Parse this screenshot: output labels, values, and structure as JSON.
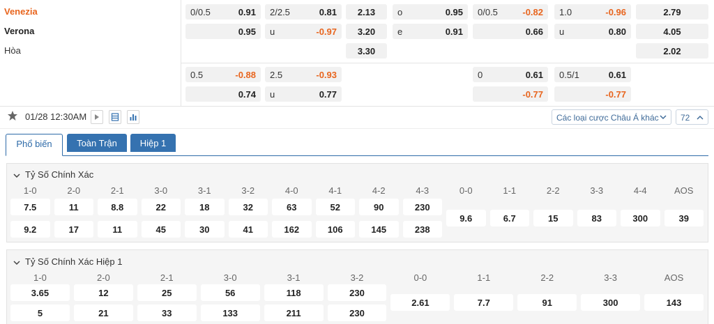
{
  "match": {
    "home": "Venezia",
    "away": "Verona",
    "draw": "Hòa"
  },
  "odds_main": {
    "handicap": {
      "home_line": "0/0.5",
      "home_odds": "0.91",
      "away_odds": "0.95"
    },
    "over_under": {
      "line": "2/2.5",
      "over_odds": "0.81",
      "under_label": "u",
      "under_odds": "-0.97"
    },
    "one_x_two": {
      "home": "2.13",
      "away": "3.20",
      "draw": "3.30"
    },
    "odd_even": {
      "odd_label": "o",
      "odd_odds": "0.95",
      "even_label": "e",
      "even_odds": "0.91"
    },
    "h1_handicap": {
      "line": "0/0.5",
      "home_odds": "-0.82",
      "away_odds": "0.66"
    },
    "h1_over_under": {
      "line": "1.0",
      "over_odds": "-0.96",
      "under_label": "u",
      "under_odds": "0.80"
    },
    "h1_one_x_two": {
      "home": "2.79",
      "away": "4.05",
      "draw": "2.02"
    }
  },
  "odds_alt": {
    "handicap": {
      "home_line": "0.5",
      "home_odds": "-0.88",
      "away_odds": "0.74"
    },
    "over_under": {
      "line": "2.5",
      "over_odds": "-0.93",
      "under_label": "u",
      "under_odds": "0.77"
    },
    "h1_handicap": {
      "line": "0",
      "home_odds": "0.61",
      "away_odds": "-0.77"
    },
    "h1_over_under": {
      "line": "0.5/1",
      "over_odds": "0.61",
      "away_odds": "-0.77"
    }
  },
  "toolbar": {
    "datetime": "01/28 12:30AM",
    "market_select": "Các loại cược Châu Á khác",
    "count": "72"
  },
  "tabs": [
    "Phổ biến",
    "Toàn Trận",
    "Hiệp 1"
  ],
  "correct_score": {
    "title": "Tỷ Số Chính Xác",
    "home_headers": [
      "1-0",
      "2-0",
      "2-1",
      "3-0",
      "3-1",
      "3-2",
      "4-0",
      "4-1",
      "4-2",
      "4-3"
    ],
    "home_row1": [
      "7.5",
      "11",
      "8.8",
      "22",
      "18",
      "32",
      "63",
      "52",
      "90",
      "230"
    ],
    "home_row2": [
      "9.2",
      "17",
      "11",
      "45",
      "30",
      "41",
      "162",
      "106",
      "145",
      "238"
    ],
    "draw_headers": [
      "0-0",
      "1-1",
      "2-2",
      "3-3",
      "4-4",
      "AOS"
    ],
    "draw_values": [
      "9.6",
      "6.7",
      "15",
      "83",
      "300",
      "39"
    ]
  },
  "correct_score_h1": {
    "title": "Tỷ Số Chính Xác Hiệp 1",
    "home_headers": [
      "1-0",
      "2-0",
      "2-1",
      "3-0",
      "3-1",
      "3-2"
    ],
    "home_row1": [
      "3.65",
      "12",
      "25",
      "56",
      "118",
      "230"
    ],
    "home_row2": [
      "5",
      "21",
      "33",
      "133",
      "211",
      "230"
    ],
    "draw_headers": [
      "0-0",
      "1-1",
      "2-2",
      "3-3",
      "AOS"
    ],
    "draw_values": [
      "2.61",
      "7.7",
      "91",
      "300",
      "143"
    ]
  },
  "colors": {
    "accent_orange": "#e8651e",
    "tab_blue": "#3572b0",
    "link_blue": "#3f6b99"
  }
}
